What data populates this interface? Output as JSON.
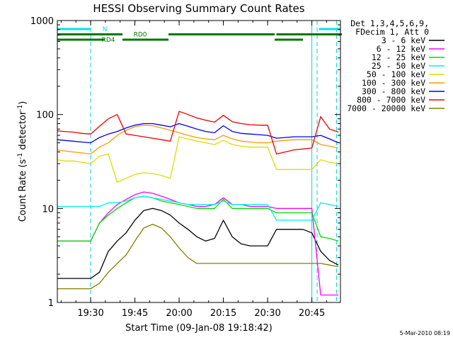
{
  "chart_data": {
    "type": "line",
    "title": "HESSI Observing Summary Count Rates",
    "xlabel": "Start Time (09-Jan-08 19:18:42)",
    "ylabel_main": "Count Rate (s",
    "ylabel_sup1": "-1",
    "ylabel_mid": " detector",
    "ylabel_sup2": "-1",
    "ylabel_end": ")",
    "xlim": [
      19.3117,
      20.9117
    ],
    "ylim": [
      1,
      1000
    ],
    "yscale": "log",
    "x_ticks": [
      19.5,
      19.75,
      20.0,
      20.25,
      20.5,
      20.75
    ],
    "x_tick_labels": [
      "19:30",
      "19:45",
      "20:00",
      "20:15",
      "20:30",
      "20:45"
    ],
    "y_ticks": [
      1,
      10,
      100,
      1000
    ],
    "y_tick_labels": [
      "1",
      "10",
      "100",
      "1000"
    ],
    "night_lines": [
      19.5,
      20.78,
      20.89
    ],
    "saa_lines": [
      20.75
    ],
    "flags": [
      {
        "label": "N",
        "color": "#00e5e5",
        "level": 0,
        "segments": [
          [
            19.31,
            19.5
          ],
          [
            20.79,
            20.91
          ]
        ],
        "label_x": 19.58
      },
      {
        "label": "RD0",
        "color": "#007700",
        "level": 1,
        "segments": [
          [
            19.31,
            19.68
          ],
          [
            19.94,
            20.54
          ],
          [
            20.55,
            20.92
          ]
        ],
        "label_x": 19.78
      },
      {
        "label": "RD4",
        "color": "#007700",
        "level": 2,
        "segments": [
          [
            19.31,
            19.58
          ],
          [
            19.68,
            19.94
          ],
          [
            20.54,
            20.7
          ]
        ],
        "label_x": 19.6
      }
    ],
    "legend_header": [
      "Det 1,3,4,5,6,9,",
      "FDecim 1, Att 0"
    ],
    "series": [
      {
        "name": "3 - 6 keV",
        "color": "#000000",
        "x": [
          19.31,
          19.35,
          19.4,
          19.45,
          19.47,
          19.5,
          19.55,
          19.6,
          19.65,
          19.7,
          19.75,
          19.8,
          19.85,
          19.9,
          19.95,
          20.0,
          20.05,
          20.1,
          20.15,
          20.2,
          20.25,
          20.3,
          20.35,
          20.4,
          20.45,
          20.5,
          20.55,
          20.6,
          20.65,
          20.7,
          20.75,
          20.8,
          20.85,
          20.9
        ],
        "y": [
          1.8,
          1.8,
          1.8,
          1.8,
          1.8,
          1.8,
          2.1,
          3.5,
          4.5,
          5.5,
          7.5,
          9.5,
          10,
          9.5,
          8.5,
          7,
          6,
          5,
          4.5,
          4.8,
          7.5,
          5,
          4.2,
          4,
          4,
          4,
          6,
          6,
          6,
          6,
          5.5,
          3.5,
          2.8,
          2.5
        ]
      },
      {
        "name": "6 - 12 keV",
        "color": "#ff00ff",
        "x": [
          19.31,
          19.35,
          19.4,
          19.45,
          19.5,
          19.55,
          19.6,
          19.65,
          19.7,
          19.75,
          19.8,
          19.85,
          19.9,
          19.95,
          20.0,
          20.05,
          20.1,
          20.15,
          20.2,
          20.25,
          20.3,
          20.35,
          20.4,
          20.45,
          20.5,
          20.55,
          20.6,
          20.65,
          20.7,
          20.75,
          20.8,
          20.85,
          20.9
        ],
        "y": [
          4.5,
          4.5,
          4.5,
          4.5,
          4.5,
          7,
          9,
          11,
          12.5,
          14,
          15,
          14.5,
          13.5,
          12.5,
          11.5,
          11,
          10.5,
          10.5,
          11,
          13,
          11,
          11,
          10.5,
          10.5,
          10.5,
          10,
          10,
          10,
          10,
          10,
          1.2,
          1.2,
          1.2
        ]
      },
      {
        "name": "12 - 25 keV",
        "color": "#00dd00",
        "x": [
          19.31,
          19.35,
          19.4,
          19.45,
          19.5,
          19.55,
          19.6,
          19.65,
          19.7,
          19.75,
          19.8,
          19.85,
          19.9,
          19.95,
          20.0,
          20.05,
          20.1,
          20.15,
          20.2,
          20.25,
          20.3,
          20.35,
          20.4,
          20.45,
          20.5,
          20.55,
          20.6,
          20.65,
          20.7,
          20.75,
          20.8,
          20.85,
          20.9
        ],
        "y": [
          4.5,
          4.5,
          4.5,
          4.5,
          4.5,
          7,
          8.5,
          10,
          11.5,
          13,
          13.5,
          13,
          12,
          11.5,
          11,
          10.5,
          10,
          10,
          10,
          12.5,
          10,
          10,
          10,
          10,
          10,
          9,
          9,
          9,
          9,
          9,
          5,
          4.8,
          4.5
        ]
      },
      {
        "name": "25 - 50 keV",
        "color": "#00eeee",
        "x": [
          19.31,
          19.35,
          19.4,
          19.45,
          19.5,
          19.55,
          19.6,
          19.65,
          19.7,
          19.75,
          19.8,
          19.85,
          19.9,
          19.95,
          20.0,
          20.05,
          20.1,
          20.15,
          20.2,
          20.25,
          20.3,
          20.35,
          20.4,
          20.45,
          20.5,
          20.55,
          20.6,
          20.65,
          20.7,
          20.75,
          20.8,
          20.85,
          20.9
        ],
        "y": [
          10.5,
          10.5,
          10.5,
          10.5,
          10.5,
          10.5,
          11.5,
          11.5,
          12,
          13,
          13.5,
          13,
          12.5,
          12,
          11.5,
          11,
          11,
          11,
          11,
          12,
          11,
          11,
          11,
          11,
          11,
          7.5,
          7.5,
          7.5,
          7.5,
          7.5,
          11.5,
          11,
          10.5
        ]
      },
      {
        "name": "50 - 100 keV",
        "color": "#dddd00",
        "x": [
          19.31,
          19.35,
          19.4,
          19.45,
          19.5,
          19.55,
          19.6,
          19.65,
          19.7,
          19.75,
          19.8,
          19.85,
          19.9,
          19.95,
          20.0,
          20.05,
          20.1,
          20.15,
          20.2,
          20.25,
          20.3,
          20.35,
          20.4,
          20.45,
          20.5,
          20.55,
          20.6,
          20.65,
          20.7,
          20.75,
          20.8,
          20.85,
          20.9
        ],
        "y": [
          33,
          32,
          32,
          31,
          30,
          36,
          38,
          19,
          21,
          23,
          24,
          23.5,
          22.5,
          21,
          58,
          55,
          52,
          50,
          48,
          53,
          48,
          46,
          45,
          45,
          45,
          26,
          26,
          26,
          26,
          26,
          33,
          31,
          30
        ]
      },
      {
        "name": "100 - 300 keV",
        "color": "#ff9900",
        "x": [
          19.31,
          19.35,
          19.4,
          19.45,
          19.5,
          19.55,
          19.6,
          19.65,
          19.7,
          19.75,
          19.8,
          19.85,
          19.9,
          19.95,
          20.0,
          20.05,
          20.1,
          20.15,
          20.2,
          20.25,
          20.3,
          20.35,
          20.4,
          20.45,
          20.5,
          20.55,
          20.6,
          20.65,
          20.7,
          20.75,
          20.8,
          20.85,
          20.9
        ],
        "y": [
          42,
          41,
          40,
          39,
          38,
          45,
          50,
          60,
          68,
          74,
          77,
          76,
          72,
          68,
          64,
          60,
          57,
          55,
          54,
          60,
          55,
          52,
          51,
          50,
          50,
          52,
          53,
          54,
          54,
          54,
          48,
          46,
          44
        ]
      },
      {
        "name": "300 - 800 keV",
        "color": "#0000ee",
        "x": [
          19.31,
          19.35,
          19.4,
          19.45,
          19.5,
          19.55,
          19.6,
          19.65,
          19.7,
          19.75,
          19.8,
          19.85,
          19.9,
          19.95,
          20.0,
          20.05,
          20.1,
          20.15,
          20.2,
          20.25,
          20.3,
          20.35,
          20.4,
          20.45,
          20.5,
          20.55,
          20.6,
          20.65,
          20.7,
          20.75,
          20.8,
          20.85,
          20.9
        ],
        "y": [
          54,
          53,
          52,
          51,
          50,
          57,
          62,
          66,
          72,
          77,
          80,
          80,
          77,
          74,
          80,
          75,
          70,
          66,
          64,
          76,
          66,
          63,
          62,
          61,
          60,
          56,
          57,
          58,
          58,
          58,
          60,
          55,
          50
        ]
      },
      {
        "name": "800 - 7000 keV",
        "color": "#ee0000",
        "x": [
          19.31,
          19.35,
          19.4,
          19.45,
          19.5,
          19.55,
          19.6,
          19.65,
          19.7,
          19.75,
          19.8,
          19.85,
          19.9,
          19.95,
          20.0,
          20.05,
          20.1,
          20.15,
          20.2,
          20.25,
          20.3,
          20.35,
          20.4,
          20.45,
          20.5,
          20.55,
          20.6,
          20.65,
          20.7,
          20.75,
          20.8,
          20.85,
          20.9
        ],
        "y": [
          67,
          66,
          65,
          63,
          62,
          75,
          90,
          100,
          62,
          60,
          58,
          56,
          54,
          52,
          108,
          100,
          92,
          87,
          83,
          98,
          84,
          80,
          78,
          77,
          77,
          38,
          40,
          42,
          43,
          44,
          95,
          70,
          65
        ]
      },
      {
        "name": "7000 - 20000 keV",
        "color": "#808000",
        "x": [
          19.31,
          19.35,
          19.4,
          19.45,
          19.5,
          19.55,
          19.6,
          19.65,
          19.7,
          19.75,
          19.8,
          19.85,
          19.9,
          19.95,
          20.0,
          20.05,
          20.1,
          20.15,
          20.2,
          20.25,
          20.3,
          20.35,
          20.4,
          20.45,
          20.5,
          20.55,
          20.6,
          20.65,
          20.7,
          20.75,
          20.8,
          20.85,
          20.9
        ],
        "y": [
          1.4,
          1.4,
          1.4,
          1.4,
          1.4,
          1.6,
          2.1,
          2.6,
          3.2,
          4.5,
          6.2,
          6.8,
          6.2,
          5,
          3.8,
          3,
          2.6,
          2.6,
          2.6,
          2.6,
          2.6,
          2.6,
          2.6,
          2.6,
          2.6,
          2.6,
          2.6,
          2.6,
          2.6,
          2.6,
          2.6,
          2.5,
          2.4
        ]
      }
    ],
    "grid": false,
    "legend_position": "right"
  },
  "timestamp": "5-Mar-2010 08:19"
}
